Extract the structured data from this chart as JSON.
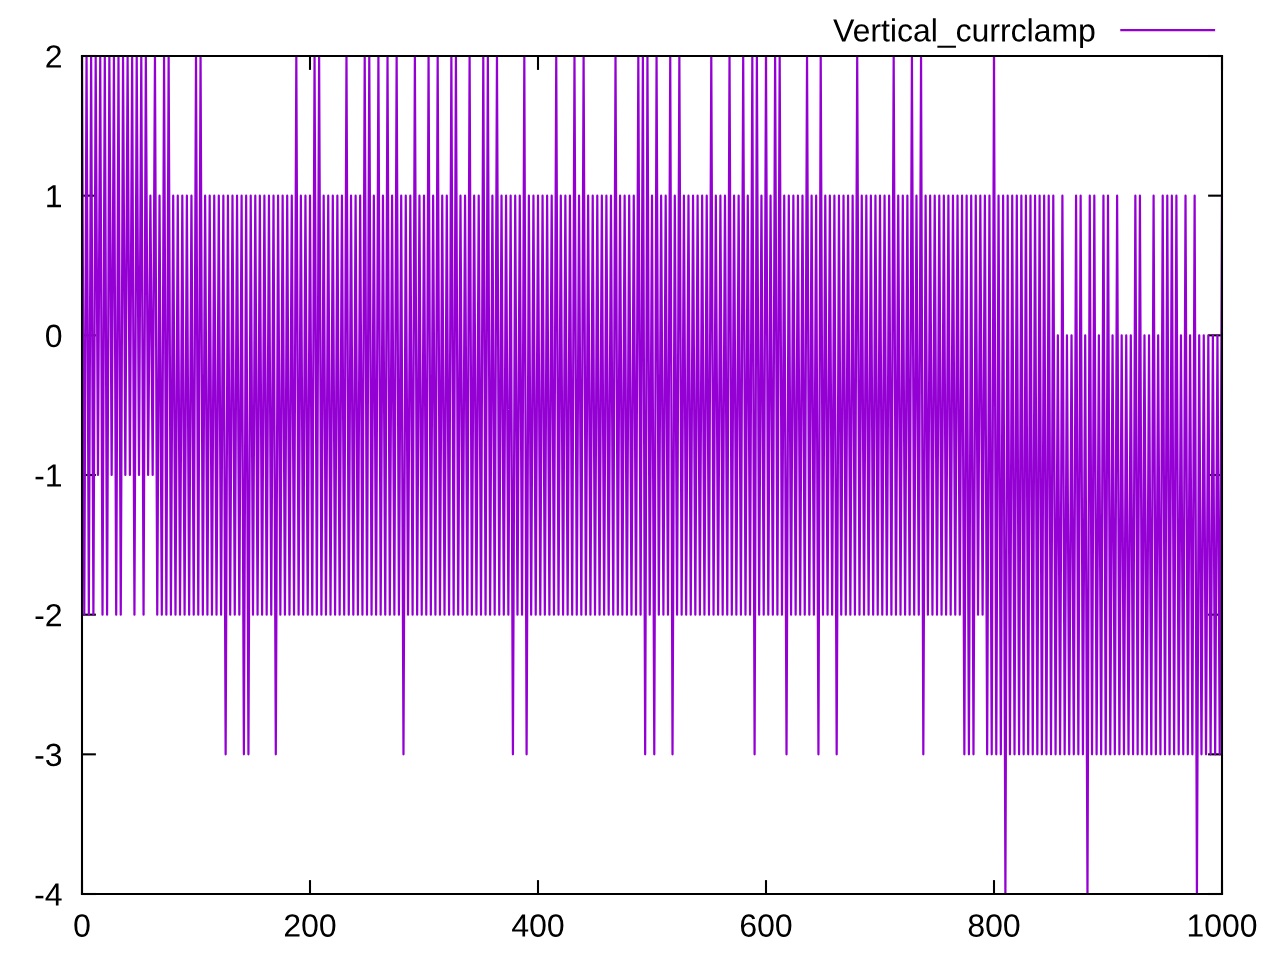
{
  "chart_data": {
    "type": "line",
    "x": [
      0,
      2,
      4,
      6,
      8,
      10,
      12,
      14,
      16,
      18,
      20,
      22,
      24,
      26,
      28,
      30,
      32,
      34,
      36,
      38,
      40,
      42,
      44,
      46,
      48,
      50,
      52,
      54,
      56,
      58,
      60,
      62,
      64,
      66,
      68,
      70,
      72,
      74,
      76,
      78,
      80,
      82,
      84,
      86,
      88,
      90,
      92,
      94,
      96,
      98,
      100,
      102,
      104,
      106,
      108,
      110,
      112,
      114,
      116,
      118,
      120,
      122,
      124,
      126,
      128,
      130,
      132,
      134,
      136,
      138,
      140,
      142,
      144,
      146,
      148,
      150,
      152,
      154,
      156,
      158,
      160,
      162,
      164,
      166,
      168,
      170,
      172,
      174,
      176,
      178,
      180,
      182,
      184,
      186,
      188,
      190,
      192,
      194,
      196,
      198,
      200,
      202,
      204,
      206,
      208,
      210,
      212,
      214,
      216,
      218,
      220,
      222,
      224,
      226,
      228,
      230,
      232,
      234,
      236,
      238,
      240,
      242,
      244,
      246,
      248,
      250,
      252,
      254,
      256,
      258,
      260,
      262,
      264,
      266,
      268,
      270,
      272,
      274,
      276,
      278,
      280,
      282,
      284,
      286,
      288,
      290,
      292,
      294,
      296,
      298,
      300,
      302,
      304,
      306,
      308,
      310,
      312,
      314,
      316,
      318,
      320,
      322,
      324,
      326,
      328,
      330,
      332,
      334,
      336,
      338,
      340,
      342,
      344,
      346,
      348,
      350,
      352,
      354,
      356,
      358,
      360,
      362,
      364,
      366,
      368,
      370,
      372,
      374,
      376,
      378,
      380,
      382,
      384,
      386,
      388,
      390,
      392,
      394,
      396,
      398,
      400,
      402,
      404,
      406,
      408,
      410,
      412,
      414,
      416,
      418,
      420,
      422,
      424,
      426,
      428,
      430,
      432,
      434,
      436,
      438,
      440,
      442,
      444,
      446,
      448,
      450,
      452,
      454,
      456,
      458,
      460,
      462,
      464,
      466,
      468,
      470,
      472,
      474,
      476,
      478,
      480,
      482,
      484,
      486,
      488,
      490,
      492,
      494,
      496,
      498,
      500,
      502,
      504,
      506,
      508,
      510,
      512,
      514,
      516,
      518,
      520,
      522,
      524,
      526,
      528,
      530,
      532,
      534,
      536,
      538,
      540,
      542,
      544,
      546,
      548,
      550,
      552,
      554,
      556,
      558,
      560,
      562,
      564,
      566,
      568,
      570,
      572,
      574,
      576,
      578,
      580,
      582,
      584,
      586,
      588,
      590,
      592,
      594,
      596,
      598,
      600,
      602,
      604,
      606,
      608,
      610,
      612,
      614,
      616,
      618,
      620,
      622,
      624,
      626,
      628,
      630,
      632,
      634,
      636,
      638,
      640,
      642,
      644,
      646,
      648,
      650,
      652,
      654,
      656,
      658,
      660,
      662,
      664,
      666,
      668,
      670,
      672,
      674,
      676,
      678,
      680,
      682,
      684,
      686,
      688,
      690,
      692,
      694,
      696,
      698,
      700,
      702,
      704,
      706,
      708,
      710,
      712,
      714,
      716,
      718,
      720,
      722,
      724,
      726,
      728,
      730,
      732,
      734,
      736,
      738,
      740,
      742,
      744,
      746,
      748,
      750,
      752,
      754,
      756,
      758,
      760,
      762,
      764,
      766,
      768,
      770,
      772,
      774,
      776,
      778,
      780,
      782,
      784,
      786,
      788,
      790,
      792,
      794,
      796,
      798,
      800,
      802,
      804,
      806,
      808,
      810,
      812,
      814,
      816,
      818,
      820,
      822,
      824,
      826,
      828,
      830,
      832,
      834,
      836,
      838,
      840,
      842,
      844,
      846,
      848,
      850,
      852,
      854,
      856,
      858,
      860,
      862,
      864,
      866,
      868,
      870,
      872,
      874,
      876,
      878,
      880,
      882,
      884,
      886,
      888,
      890,
      892,
      894,
      896,
      898,
      900,
      902,
      904,
      906,
      908,
      910,
      912,
      914,
      916,
      918,
      920,
      922,
      924,
      926,
      928,
      930,
      932,
      934,
      936,
      938,
      940,
      942,
      944,
      946,
      948,
      950,
      952,
      954,
      956,
      958,
      960,
      962,
      964,
      966,
      968,
      970,
      972,
      974,
      976,
      978,
      980,
      982,
      984,
      986,
      988,
      990,
      992,
      994,
      996,
      998,
      1000
    ],
    "series": [
      {
        "name": "Vertical_currclamp",
        "color": "#9400d3",
        "values": [
          2,
          -2,
          2,
          -2,
          2,
          -2,
          2,
          -1,
          2,
          -2,
          2,
          -2,
          2,
          -1,
          2,
          -2,
          2,
          -2,
          2,
          -1,
          2,
          -1,
          2,
          -2,
          2,
          -1,
          2,
          -2,
          2,
          -1,
          1,
          -1,
          2,
          -2,
          1,
          -2,
          2,
          -2,
          2,
          -2,
          1,
          -2,
          1,
          -2,
          1,
          -2,
          1,
          -2,
          1,
          -2,
          2,
          -2,
          2,
          -2,
          1,
          -2,
          1,
          -2,
          1,
          -2,
          1,
          -2,
          1,
          -3,
          1,
          -2,
          1,
          -2,
          1,
          -2,
          1,
          -3,
          1,
          -3,
          1,
          -2,
          1,
          -2,
          1,
          -2,
          1,
          -2,
          1,
          -2,
          1,
          -3,
          1,
          -2,
          1,
          -2,
          1,
          -2,
          1,
          -2,
          2,
          -2,
          1,
          -2,
          1,
          -2,
          1,
          -2,
          2,
          -2,
          2,
          -2,
          1,
          -2,
          1,
          -2,
          1,
          -2,
          1,
          -2,
          1,
          -2,
          2,
          -2,
          1,
          -2,
          1,
          -2,
          1,
          -2,
          2,
          -2,
          2,
          -2,
          1,
          -2,
          2,
          -2,
          1,
          -2,
          2,
          -2,
          1,
          -2,
          2,
          -2,
          1,
          -3,
          1,
          -2,
          1,
          -2,
          2,
          -2,
          1,
          -2,
          1,
          -2,
          2,
          -2,
          1,
          -2,
          2,
          -2,
          1,
          -2,
          1,
          -2,
          2,
          -2,
          2,
          -2,
          1,
          -2,
          1,
          -2,
          2,
          -2,
          1,
          -2,
          1,
          -2,
          2,
          -2,
          2,
          -2,
          1,
          -2,
          2,
          -2,
          1,
          -2,
          1,
          -2,
          1,
          -3,
          1,
          -2,
          1,
          -2,
          2,
          -3,
          1,
          -2,
          1,
          -2,
          1,
          -2,
          1,
          -2,
          1,
          -2,
          1,
          -2,
          2,
          -2,
          1,
          -2,
          1,
          -2,
          1,
          -2,
          2,
          -2,
          1,
          -2,
          2,
          -2,
          1,
          -2,
          1,
          -2,
          1,
          -2,
          1,
          -2,
          1,
          -2,
          1,
          -2,
          2,
          -2,
          1,
          -2,
          1,
          -2,
          1,
          -2,
          1,
          -2,
          2,
          -2,
          2,
          -3,
          2,
          -2,
          1,
          -3,
          2,
          -2,
          1,
          -2,
          1,
          -2,
          2,
          -3,
          1,
          -2,
          2,
          -2,
          1,
          -2,
          1,
          -2,
          1,
          -2,
          1,
          -2,
          1,
          -2,
          1,
          -2,
          2,
          -2,
          1,
          -2,
          1,
          -2,
          1,
          -2,
          2,
          -2,
          1,
          -2,
          1,
          -2,
          2,
          -2,
          1,
          -2,
          2,
          -3,
          2,
          -2,
          1,
          -2,
          2,
          -2,
          1,
          -2,
          2,
          -2,
          2,
          -2,
          1,
          -3,
          1,
          -2,
          1,
          -2,
          1,
          -2,
          1,
          -2,
          2,
          -2,
          1,
          -2,
          1,
          -3,
          2,
          -2,
          1,
          -2,
          1,
          -2,
          1,
          -3,
          1,
          -2,
          1,
          -2,
          1,
          -2,
          1,
          -2,
          2,
          -2,
          1,
          -2,
          1,
          -2,
          1,
          -2,
          1,
          -2,
          1,
          -2,
          1,
          -2,
          1,
          -2,
          2,
          -2,
          1,
          -2,
          1,
          -2,
          1,
          -2,
          2,
          -2,
          1,
          -2,
          2,
          -3,
          1,
          -2,
          1,
          -2,
          1,
          -2,
          1,
          -2,
          1,
          -2,
          1,
          -2,
          1,
          -2,
          1,
          -2,
          1,
          -3,
          1,
          -3,
          1,
          -3,
          1,
          -2,
          1,
          -2,
          1,
          -3,
          1,
          -3,
          2,
          -3,
          1,
          -3,
          1,
          -4,
          1,
          -3,
          1,
          -3,
          1,
          -3,
          1,
          -3,
          1,
          -3,
          1,
          -3,
          1,
          -3,
          1,
          -3,
          1,
          -3,
          1,
          -3,
          1,
          -3,
          0,
          -3,
          1,
          -3,
          0,
          -3,
          0,
          -3,
          1,
          -3,
          1,
          -3,
          0,
          -4,
          1,
          -3,
          1,
          -3,
          0,
          -3,
          1,
          -3,
          1,
          -3,
          0,
          -3,
          1,
          -3,
          0,
          -3,
          0,
          -3,
          0,
          -3,
          1,
          -3,
          1,
          -3,
          0,
          -3,
          0,
          -3,
          1,
          -3,
          0,
          -3,
          1,
          -3,
          1,
          -3,
          1,
          -3,
          1,
          -3,
          0,
          -3,
          1,
          -3,
          0,
          -3,
          1,
          -4,
          0,
          -3,
          0,
          -3,
          0,
          -3,
          0,
          -3,
          0,
          -3,
          1
        ]
      }
    ],
    "xlim": [
      0,
      1000
    ],
    "ylim": [
      -4,
      2
    ],
    "xticks": [
      0,
      200,
      400,
      600,
      800,
      1000
    ],
    "yticks": [
      -4,
      -3,
      -2,
      -1,
      0,
      1,
      2
    ],
    "legend": "top right",
    "line_style": "solid"
  }
}
